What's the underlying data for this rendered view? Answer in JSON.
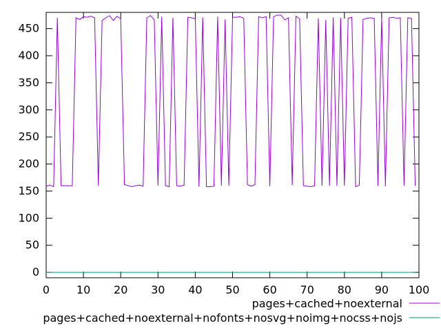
{
  "chart_data": {
    "type": "line",
    "title": "",
    "xlabel": "",
    "ylabel": "",
    "xlim": [
      0,
      100
    ],
    "ylim": [
      -10,
      480
    ],
    "xticks": [
      0,
      10,
      20,
      30,
      40,
      50,
      60,
      70,
      80,
      90,
      100
    ],
    "yticks": [
      0,
      50,
      100,
      150,
      200,
      250,
      300,
      350,
      400,
      450
    ],
    "grid": false,
    "legend_position": "bottom-right",
    "series": [
      {
        "name": "pages+cached+noexternal",
        "color": "#9400d3",
        "x": [
          0,
          1,
          2,
          3,
          4,
          5,
          6,
          7,
          8,
          9,
          10,
          11,
          12,
          13,
          14,
          15,
          16,
          17,
          18,
          19,
          20,
          21,
          22,
          23,
          24,
          25,
          26,
          27,
          28,
          29,
          30,
          31,
          32,
          33,
          34,
          35,
          36,
          37,
          38,
          39,
          40,
          41,
          42,
          43,
          44,
          45,
          46,
          47,
          48,
          49,
          50,
          51,
          52,
          53,
          54,
          55,
          56,
          57,
          58,
          59,
          60,
          61,
          62,
          63,
          64,
          65,
          66,
          67,
          68,
          69,
          70,
          71,
          72,
          73,
          74,
          75,
          76,
          77,
          78,
          79,
          80,
          81,
          82,
          83,
          84,
          85,
          86,
          87,
          88,
          89,
          90,
          91,
          92,
          93,
          94,
          95,
          96,
          97,
          98,
          99
        ],
        "y": [
          159,
          161,
          158,
          470,
          160,
          160,
          160,
          160,
          470,
          467,
          472,
          471,
          473,
          470,
          160,
          465,
          470,
          474,
          465,
          473,
          468,
          162,
          160,
          158,
          160,
          161,
          159,
          470,
          474,
          466,
          160,
          472,
          160,
          158,
          470,
          160,
          159,
          161,
          471,
          470,
          468,
          158,
          471,
          158,
          158,
          159,
          472,
          160,
          467,
          160,
          471,
          471,
          472,
          469,
          162,
          159,
          162,
          472,
          470,
          472,
          159,
          472,
          475,
          475,
          466,
          470,
          161,
          473,
          468,
          160,
          159,
          158,
          160,
          469,
          160,
          466,
          160,
          471,
          160,
          470,
          160,
          469,
          471,
          158,
          161,
          467,
          469,
          470,
          469,
          160,
          471,
          159,
          470,
          471,
          469,
          470,
          160,
          470,
          469,
          160
        ]
      },
      {
        "name": "pages+cached+noexternal+nofonts+nosvg+noimg+nocss+nojs",
        "color": "#009e73",
        "x": [
          0,
          99
        ],
        "y": [
          0,
          0
        ]
      }
    ]
  }
}
